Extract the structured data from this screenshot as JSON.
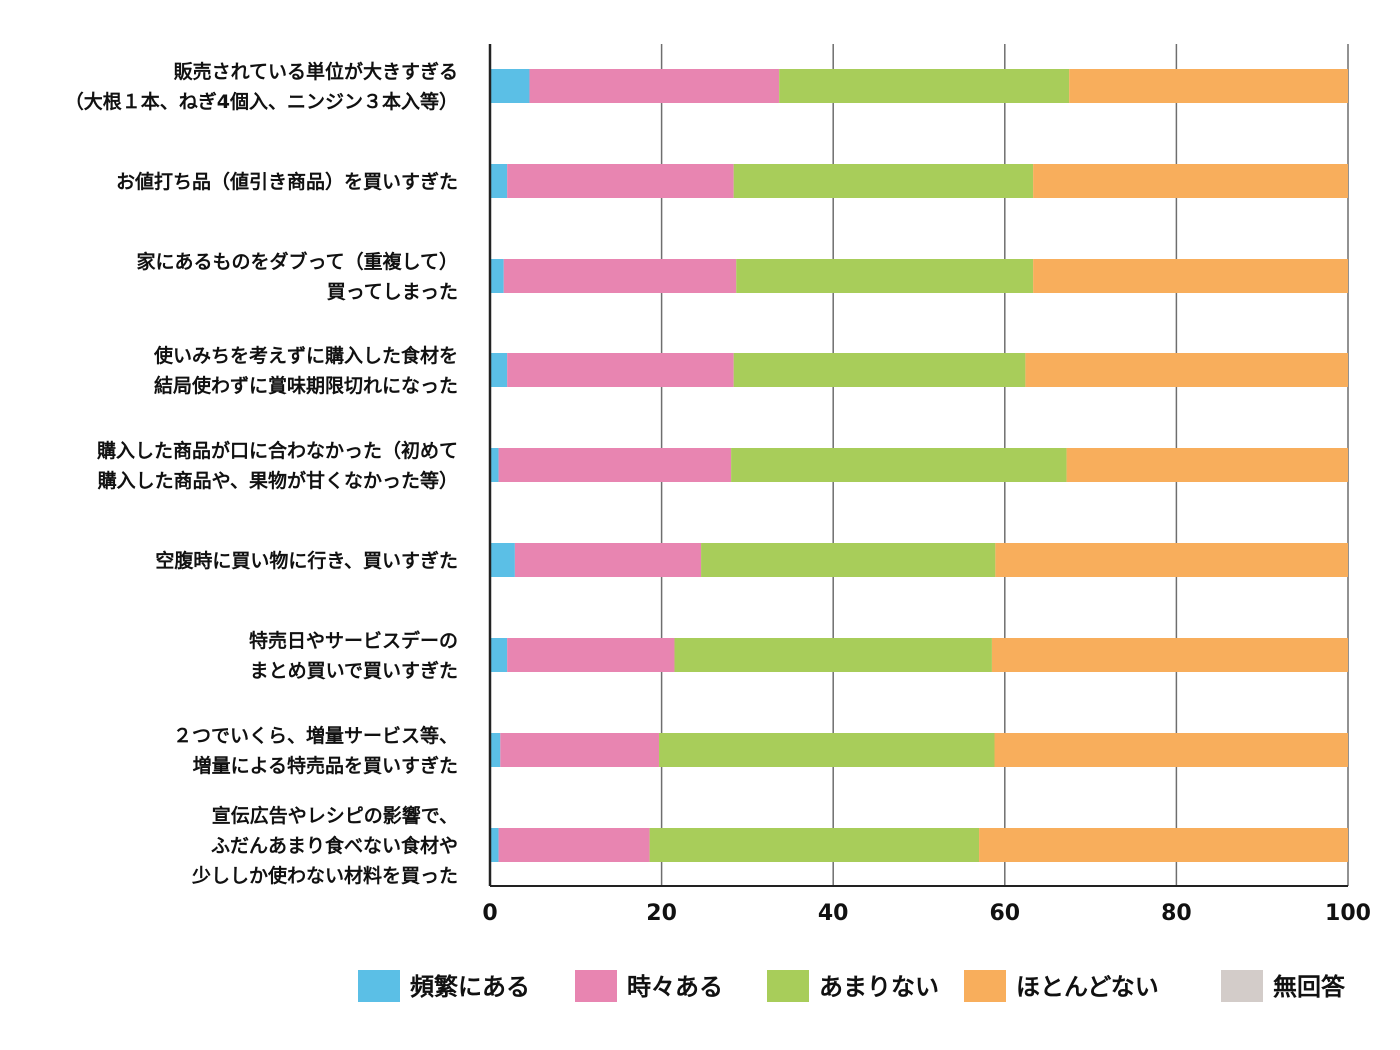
{
  "chart_data": {
    "type": "bar",
    "orientation": "horizontal",
    "stacked": true,
    "categories": [
      [
        "販売されている単位が大きすぎる",
        "（大根１本、ねぎ4個入、ニンジン３本入等）"
      ],
      [
        "お値打ち品（値引き商品）を買いすぎた"
      ],
      [
        "家にあるものをダブって（重複して）",
        "買ってしまった"
      ],
      [
        "使いみちを考えずに購入した食材を",
        "結局使わずに賞味期限切れになった"
      ],
      [
        "購入した商品が口に合わなかった（初めて",
        "購入した商品や、果物が甘くなかった等）"
      ],
      [
        "空腹時に買い物に行き、買いすぎた"
      ],
      [
        "特売日やサービスデーの",
        "まとめ買いで買いすぎた"
      ],
      [
        "２つでいくら、増量サービス等、",
        "増量による特売品を買いすぎた"
      ],
      [
        "宣伝広告やレシピの影響で、",
        "ふだんあまり食べない食材や",
        "少ししか使わない材料を買った"
      ]
    ],
    "series": [
      {
        "name": "頻繁にある",
        "color": "#5bbfe6",
        "values": [
          4.6,
          2.0,
          1.6,
          2.0,
          1.0,
          2.9,
          2.0,
          1.2,
          1.0
        ]
      },
      {
        "name": "時々ある",
        "color": "#e885b1",
        "values": [
          29.1,
          26.4,
          27.1,
          26.4,
          27.1,
          21.7,
          19.5,
          18.5,
          17.6
        ]
      },
      {
        "name": "あまりない",
        "color": "#a8cd5a",
        "values": [
          33.8,
          34.9,
          34.6,
          34.0,
          39.1,
          34.3,
          37.0,
          39.1,
          38.4
        ]
      },
      {
        "name": "ほとんどない",
        "color": "#f8ae5c",
        "values": [
          32.5,
          36.7,
          36.7,
          37.6,
          32.8,
          41.1,
          41.5,
          41.2,
          43.0
        ]
      },
      {
        "name": "無回答",
        "color": "#d3ccc9",
        "values": [
          0,
          0,
          0,
          0,
          0,
          0,
          0,
          0,
          0
        ]
      }
    ],
    "xlim": [
      0,
      100
    ],
    "xticks": [
      "0",
      "20",
      "40",
      "60",
      "80",
      "100"
    ],
    "xlabel": "",
    "ylabel": "",
    "title": "",
    "grid": "vertical",
    "legend_position": "bottom"
  }
}
